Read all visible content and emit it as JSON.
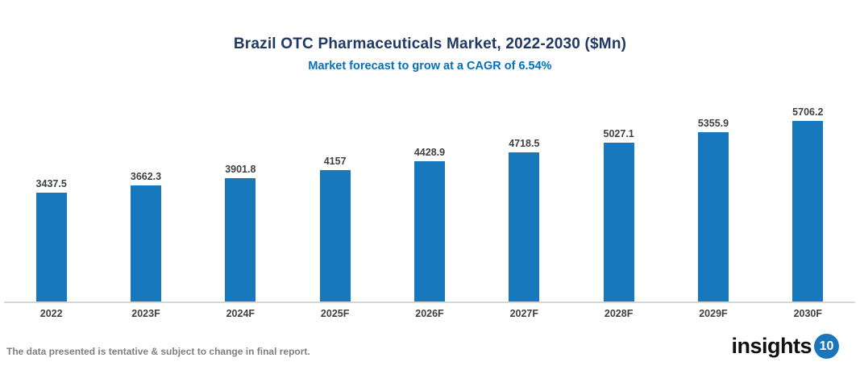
{
  "header": {
    "title": "Brazil OTC Pharmaceuticals Market, 2022-2030 ($Mn)",
    "subtitle": "Market forecast to grow at a CAGR of 6.54%"
  },
  "footer": {
    "disclaimer": "The data presented is tentative & subject to change in final report."
  },
  "logo": {
    "text": "insights",
    "badge": "10"
  },
  "colors": {
    "bar": "#1878be",
    "title": "#1f3864",
    "subtitle": "#0070c0",
    "data_label": "#404040",
    "axis_line": "#d6d6d6",
    "disclaimer_text": "#808080",
    "logo_badge": "#1b75bb"
  },
  "chart_data": {
    "type": "bar",
    "title": "Brazil OTC Pharmaceuticals Market, 2022-2030 ($Mn)",
    "subtitle": "Market forecast to grow at a CAGR of 6.54%",
    "categories": [
      "2022",
      "2023F",
      "2024F",
      "2025F",
      "2026F",
      "2027F",
      "2028F",
      "2029F",
      "2030F"
    ],
    "values": [
      3437.5,
      3662.3,
      3901.8,
      4157,
      4428.9,
      4718.5,
      5027.1,
      5355.9,
      5706.2
    ],
    "data_labels": [
      "3437.5",
      "3662.3",
      "3901.8",
      "4157",
      "4428.9",
      "4718.5",
      "5027.1",
      "5355.9",
      "5706.2"
    ],
    "xlabel": "",
    "ylabel": "",
    "ylim": [
      0,
      5750
    ],
    "grid": false,
    "legend": false,
    "y_axis_visible": false,
    "data_labels_position": "above-bar"
  }
}
